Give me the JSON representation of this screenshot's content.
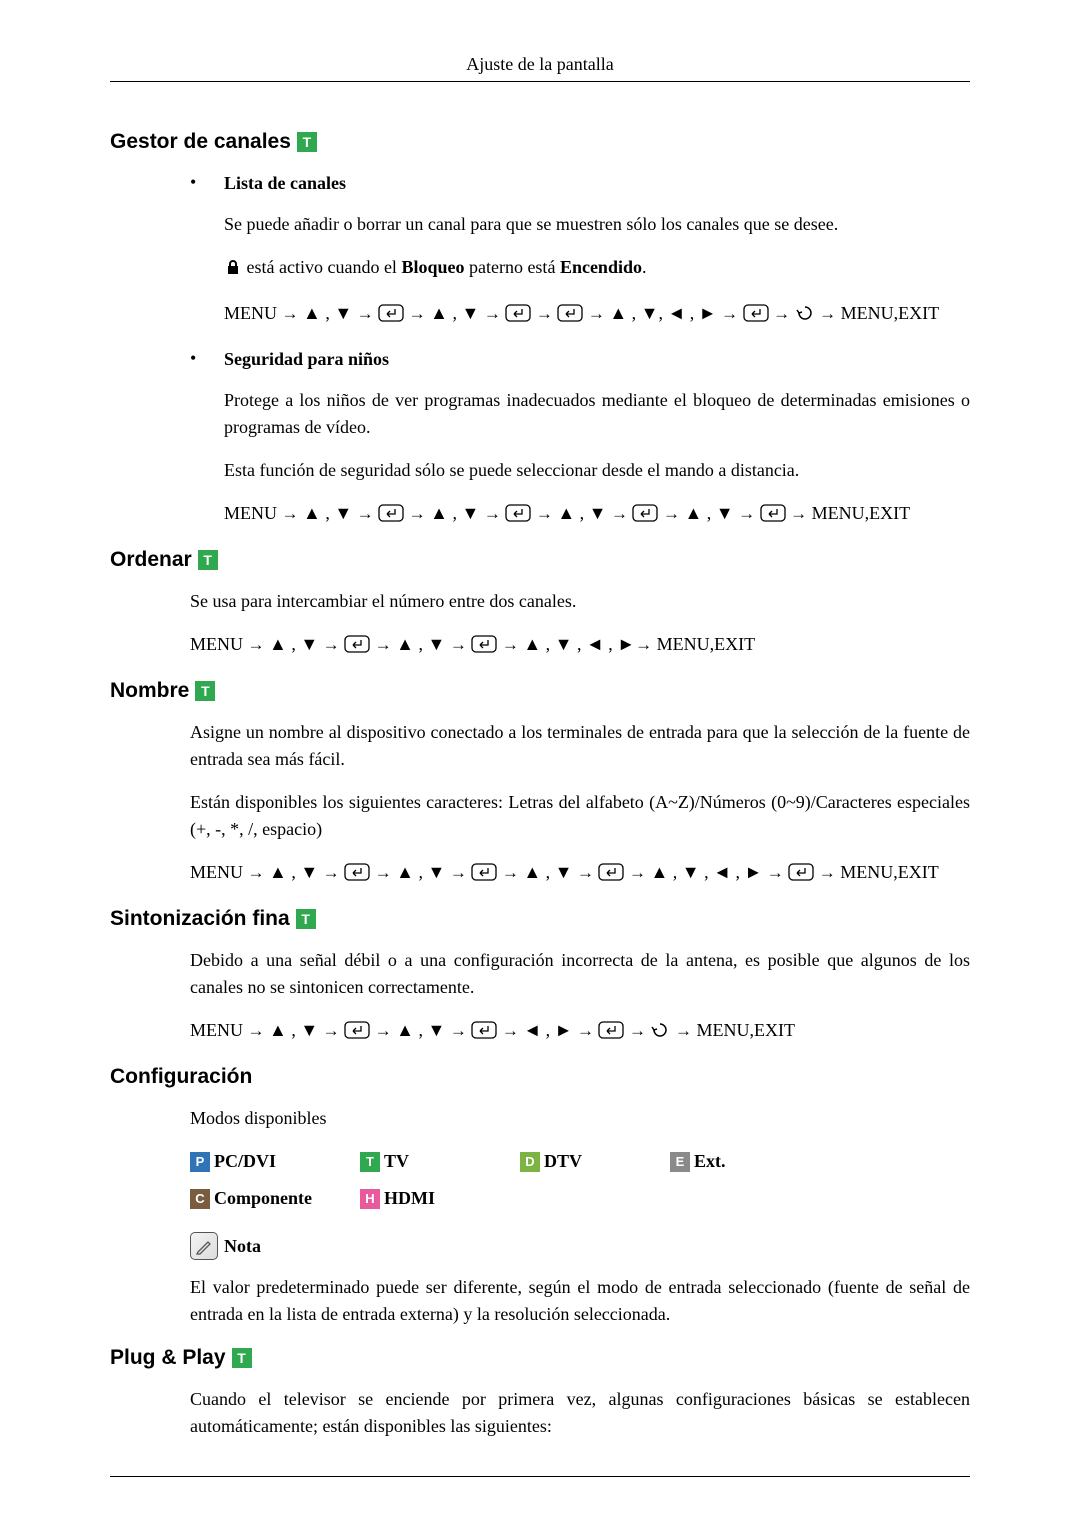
{
  "page_header": "Ajuste de la pantalla",
  "sections": {
    "gestor": {
      "title": "Gestor de canales",
      "lista": {
        "label": "Lista de canales",
        "desc": "Se puede añadir o borrar un canal para que se muestren sólo los canales que se desee.",
        "lock_pre": " está activo cuando el ",
        "lock_bold1": "Bloqueo",
        "lock_mid": " paterno está ",
        "lock_bold2": "Encendido",
        "lock_post": ".",
        "nav": "MENU → ▲ , ▼ → [↵] → ▲ , ▼ → [↵] → [↵] → ▲ , ▼, ◄ , ► → [↵] →  ↺  → MENU,EXIT"
      },
      "seguridad": {
        "label": "Seguridad para niños",
        "desc1": "Protege a los niños de ver programas inadecuados mediante el bloqueo de determinadas emisiones o programas de vídeo.",
        "desc2": "Esta función de seguridad sólo se puede seleccionar desde el mando a distancia.",
        "nav": "MENU → ▲ , ▼ → [↵] → ▲ , ▼ → [↵] → ▲ , ▼ → [↵] → ▲ , ▼ → [↵] → MENU,EXIT"
      }
    },
    "ordenar": {
      "title": "Ordenar",
      "desc": "Se usa para intercambiar el número entre dos canales.",
      "nav": "MENU → ▲ , ▼ → [↵] → ▲ , ▼ → [↵] → ▲ , ▼ , ◄ , ►→ MENU,EXIT"
    },
    "nombre": {
      "title": "Nombre",
      "desc1": "Asigne un nombre al dispositivo conectado a los terminales de entrada para que la selección de la fuente de entrada sea más fácil.",
      "desc2": "Están disponibles los siguientes caracteres: Letras del alfabeto (A~Z)/Números (0~9)/Caracteres especiales (+, -, *, /, espacio)",
      "nav": "MENU → ▲ , ▼ → [↵] → ▲ , ▼ → [↵] → ▲ , ▼ → [↵] → ▲ , ▼ , ◄ , ► → [↵] → MENU,EXIT"
    },
    "sintonizacion": {
      "title": "Sintonización fina",
      "desc": "Debido a una señal débil o a una configuración incorrecta de la antena, es posible que algunos de los canales no se sintonicen correctamente.",
      "nav": "MENU → ▲ , ▼ → [↵] → ▲ , ▼ → [↵] → ◄ , ► → [↵] →  ↺  → MENU,EXIT"
    },
    "configuracion": {
      "title": "Configuración",
      "subtitle": "Modos disponibles",
      "modes": [
        {
          "letter": "P",
          "label": "PC/DVI",
          "bg": "#2f74b5"
        },
        {
          "letter": "T",
          "label": "TV",
          "bg": "#2fa84f"
        },
        {
          "letter": "D",
          "label": "DTV",
          "bg": "#7cb342"
        },
        {
          "letter": "E",
          "label": "Ext.",
          "bg": "#8a8a8a"
        },
        {
          "letter": "C",
          "label": "Componente",
          "bg": "#7a5c3e"
        },
        {
          "letter": "H",
          "label": "HDMI",
          "bg": "#e85a9b"
        }
      ],
      "nota_label": "Nota",
      "nota_text": "El valor predeterminado puede ser diferente, según el modo de entrada seleccionado (fuente de señal de entrada en la lista de entrada externa) y la resolución seleccionada."
    },
    "plugplay": {
      "title": "Plug & Play",
      "desc": "Cuando el televisor se enciende por primera vez, algunas configuraciones básicas se establecen automáticamente; están disponibles las siguientes:"
    }
  }
}
